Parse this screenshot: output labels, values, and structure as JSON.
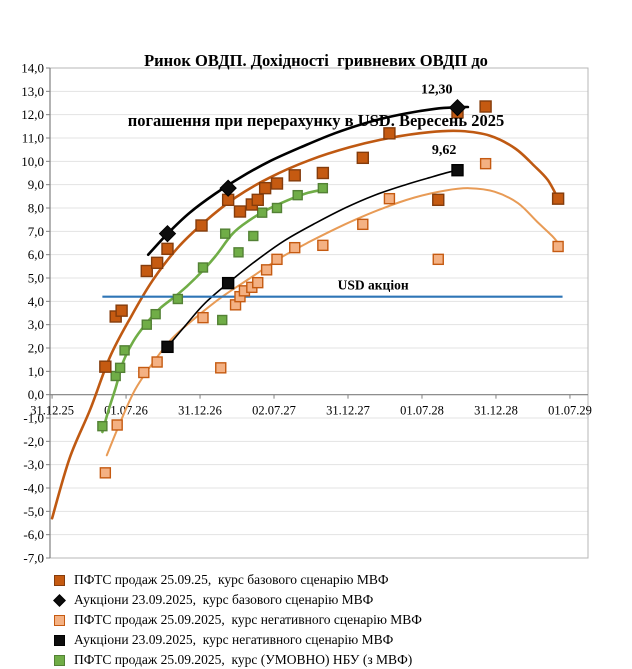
{
  "title": {
    "line1": "Ринок ОВДП. Дохідності  гривневих ОВДП до",
    "line2": "погашення при перерахунку в USD. Вересень 2025"
  },
  "chart_data": {
    "type": "scatter",
    "title": "Ринок ОВДП. Дохідності гривневих ОВДП до погашення при перерахунку в USD. Вересень 2025",
    "x_axis": {
      "range": [
        2025.986,
        2029.622
      ],
      "ticks": [
        {
          "label": "31.12.25",
          "x": 2026.0
        },
        {
          "label": "01.07.26",
          "x": 2026.5
        },
        {
          "label": "31.12.26",
          "x": 2027.0
        },
        {
          "label": "02.07.27",
          "x": 2027.5
        },
        {
          "label": "31.12.27",
          "x": 2028.0
        },
        {
          "label": "01.07.28",
          "x": 2028.5
        },
        {
          "label": "31.12.28",
          "x": 2029.0
        },
        {
          "label": "01.07.29",
          "x": 2029.5
        }
      ]
    },
    "y_axis": {
      "range": [
        -7,
        14
      ],
      "ticks": [
        {
          "label": "14,0",
          "v": 14
        },
        {
          "label": "13,0",
          "v": 13
        },
        {
          "label": "12,0",
          "v": 12
        },
        {
          "label": "11,0",
          "v": 11
        },
        {
          "label": "10,0",
          "v": 10
        },
        {
          "label": "9,0",
          "v": 9
        },
        {
          "label": "8,0",
          "v": 8
        },
        {
          "label": "7,0",
          "v": 7
        },
        {
          "label": "6,0",
          "v": 6
        },
        {
          "label": "5,0",
          "v": 5
        },
        {
          "label": "4,0",
          "v": 4
        },
        {
          "label": "3,0",
          "v": 3
        },
        {
          "label": "2,0",
          "v": 2
        },
        {
          "label": "1,0",
          "v": 1
        },
        {
          "label": "0,0",
          "v": 0
        },
        {
          "label": "-1,0",
          "v": -1
        },
        {
          "label": "-2,0",
          "v": -2
        },
        {
          "label": "-3,0",
          "v": -3
        },
        {
          "label": "-4,0",
          "v": -4
        },
        {
          "label": "-5,0",
          "v": -5
        },
        {
          "label": "-6,0",
          "v": -6
        },
        {
          "label": "-7,0",
          "v": -7
        }
      ]
    },
    "reference_line": {
      "label": "USD акціон",
      "value": 4.2,
      "x_from": 2026.34,
      "x_to": 2029.45,
      "color": "#2E75B6"
    },
    "annotations": [
      {
        "text": "12,30",
        "x": 2028.6,
        "y": 13.05,
        "anchor": "middle",
        "size": 14
      },
      {
        "text": "9,62",
        "x": 2028.65,
        "y": 10.45,
        "anchor": "middle",
        "size": 14
      },
      {
        "text": "USD акціон",
        "x": 2027.93,
        "y": 4.65,
        "anchor": "start",
        "size": 13.5
      }
    ],
    "series": [
      {
        "id": "pfts-negative-scenario",
        "marker": "square",
        "size": 10,
        "fill": "#F4B183",
        "stroke": "#C55A11",
        "trend_color": "#E89B56",
        "trend_width": 2,
        "points": [
          [
            2026.36,
            -3.35
          ],
          [
            2026.44,
            -1.3
          ],
          [
            2026.62,
            0.95
          ],
          [
            2026.71,
            1.4
          ],
          [
            2027.02,
            3.3
          ],
          [
            2027.14,
            1.15
          ],
          [
            2027.24,
            3.85
          ],
          [
            2027.27,
            4.2
          ],
          [
            2027.3,
            4.45
          ],
          [
            2027.35,
            4.6
          ],
          [
            2027.39,
            4.8
          ],
          [
            2027.45,
            5.35
          ],
          [
            2027.52,
            5.8
          ],
          [
            2027.64,
            6.3
          ],
          [
            2027.83,
            6.4
          ],
          [
            2028.1,
            7.3
          ],
          [
            2028.28,
            8.4
          ],
          [
            2028.61,
            5.8
          ],
          [
            2028.93,
            9.9
          ],
          [
            2029.42,
            6.35
          ]
        ],
        "trend": [
          [
            2026.37,
            -2.6
          ],
          [
            2026.46,
            -1.2
          ],
          [
            2026.56,
            0.2
          ],
          [
            2026.68,
            1.35
          ],
          [
            2026.81,
            2.4
          ],
          [
            2026.97,
            3.3
          ],
          [
            2027.15,
            4.2
          ],
          [
            2027.34,
            5.0
          ],
          [
            2027.54,
            5.85
          ],
          [
            2027.74,
            6.55
          ],
          [
            2027.98,
            7.3
          ],
          [
            2028.22,
            7.95
          ],
          [
            2028.45,
            8.45
          ],
          [
            2028.66,
            8.75
          ],
          [
            2028.82,
            8.85
          ],
          [
            2028.99,
            8.7
          ],
          [
            2029.15,
            8.2
          ],
          [
            2029.28,
            7.4
          ],
          [
            2029.38,
            6.8
          ],
          [
            2029.42,
            6.5
          ]
        ]
      },
      {
        "id": "pfts-nbu-conditional",
        "marker": "square",
        "size": 9,
        "fill": "#70AD47",
        "stroke": "#538135",
        "trend_color": "#70AD47",
        "trend_width": 2.6,
        "points": [
          [
            2026.34,
            -1.35
          ],
          [
            2026.43,
            0.8
          ],
          [
            2026.46,
            1.15
          ],
          [
            2026.49,
            1.9
          ],
          [
            2026.64,
            3.0
          ],
          [
            2026.7,
            3.45
          ],
          [
            2026.85,
            4.1
          ],
          [
            2027.02,
            5.45
          ],
          [
            2027.15,
            3.2
          ],
          [
            2027.17,
            6.9
          ],
          [
            2027.26,
            6.1
          ],
          [
            2027.36,
            6.8
          ],
          [
            2027.42,
            7.8
          ],
          [
            2027.52,
            8.0
          ],
          [
            2027.66,
            8.55
          ],
          [
            2027.83,
            8.85
          ]
        ],
        "trend": [
          [
            2026.34,
            -1.6
          ],
          [
            2026.38,
            -0.7
          ],
          [
            2026.43,
            0.3
          ],
          [
            2026.48,
            1.4
          ],
          [
            2026.55,
            2.3
          ],
          [
            2026.63,
            3.0
          ],
          [
            2026.73,
            3.7
          ],
          [
            2026.85,
            4.3
          ],
          [
            2026.97,
            5.0
          ],
          [
            2027.1,
            5.9
          ],
          [
            2027.22,
            6.9
          ],
          [
            2027.34,
            7.5
          ],
          [
            2027.46,
            7.95
          ],
          [
            2027.6,
            8.35
          ],
          [
            2027.73,
            8.65
          ],
          [
            2027.85,
            8.8
          ]
        ]
      },
      {
        "id": "pfts-base-scenario",
        "marker": "square",
        "size": 11,
        "fill": "#C55A11",
        "stroke": "#843C0C",
        "trend_color": "#BF5912",
        "trend_width": 2.6,
        "points": [
          [
            2026.36,
            1.2
          ],
          [
            2026.43,
            3.35
          ],
          [
            2026.47,
            3.6
          ],
          [
            2026.64,
            5.3
          ],
          [
            2026.71,
            5.65
          ],
          [
            2026.78,
            6.25
          ],
          [
            2027.01,
            7.25
          ],
          [
            2027.19,
            8.35
          ],
          [
            2027.27,
            7.85
          ],
          [
            2027.35,
            8.15
          ],
          [
            2027.39,
            8.35
          ],
          [
            2027.44,
            8.85
          ],
          [
            2027.52,
            9.05
          ],
          [
            2027.64,
            9.4
          ],
          [
            2027.83,
            9.5
          ],
          [
            2028.1,
            10.15
          ],
          [
            2028.28,
            11.2
          ],
          [
            2028.61,
            8.35
          ],
          [
            2028.74,
            12.1
          ],
          [
            2028.93,
            12.35
          ],
          [
            2029.42,
            8.4
          ]
        ],
        "trend": [
          [
            2026.0,
            -5.3
          ],
          [
            2026.12,
            -2.7
          ],
          [
            2026.26,
            -0.6
          ],
          [
            2026.39,
            1.6
          ],
          [
            2026.53,
            3.3
          ],
          [
            2026.68,
            4.9
          ],
          [
            2026.85,
            6.3
          ],
          [
            2027.03,
            7.4
          ],
          [
            2027.24,
            8.45
          ],
          [
            2027.47,
            9.3
          ],
          [
            2027.74,
            10.05
          ],
          [
            2028.01,
            10.6
          ],
          [
            2028.28,
            11.0
          ],
          [
            2028.55,
            11.25
          ],
          [
            2028.76,
            11.3
          ],
          [
            2028.96,
            11.1
          ],
          [
            2029.13,
            10.55
          ],
          [
            2029.26,
            9.8
          ],
          [
            2029.35,
            9.2
          ],
          [
            2029.42,
            8.4
          ]
        ]
      },
      {
        "id": "auction-negative-scenario",
        "marker": "square",
        "size": 11,
        "fill": "#0D0D0D",
        "stroke": "#000000",
        "trend_color": "#000000",
        "trend_width": 1.6,
        "points": [
          [
            2026.78,
            2.05
          ],
          [
            2027.19,
            4.78
          ],
          [
            2028.74,
            9.62
          ]
        ],
        "trend": [
          [
            2026.78,
            2.05
          ],
          [
            2026.9,
            2.95
          ],
          [
            2027.03,
            3.9
          ],
          [
            2027.19,
            4.78
          ],
          [
            2027.37,
            5.7
          ],
          [
            2027.57,
            6.6
          ],
          [
            2027.78,
            7.35
          ],
          [
            2027.98,
            8.0
          ],
          [
            2028.18,
            8.55
          ],
          [
            2028.39,
            9.0
          ],
          [
            2028.55,
            9.3
          ],
          [
            2028.69,
            9.55
          ],
          [
            2028.77,
            9.63
          ]
        ]
      },
      {
        "id": "auction-base-scenario",
        "marker": "diamond",
        "size": 16,
        "fill": "#0D0D0D",
        "stroke": "#000000",
        "trend_color": "#000000",
        "trend_width": 2.6,
        "points": [
          [
            2026.78,
            6.9
          ],
          [
            2027.19,
            8.85
          ],
          [
            2028.74,
            12.3
          ]
        ],
        "trend": [
          [
            2026.65,
            6.0
          ],
          [
            2026.78,
            6.9
          ],
          [
            2026.93,
            7.8
          ],
          [
            2027.1,
            8.6
          ],
          [
            2027.27,
            9.3
          ],
          [
            2027.47,
            10.0
          ],
          [
            2027.68,
            10.6
          ],
          [
            2027.91,
            11.2
          ],
          [
            2028.15,
            11.7
          ],
          [
            2028.39,
            12.05
          ],
          [
            2028.59,
            12.25
          ],
          [
            2028.74,
            12.32
          ],
          [
            2028.81,
            12.33
          ]
        ]
      }
    ],
    "grid": {
      "horizontal": true,
      "color": "#E3E3E3"
    },
    "legend_position": "bottom"
  },
  "legend": {
    "items": [
      {
        "label": "ПФТС продаж 25.09.25,  курс базового сценарію МВФ",
        "shape": "square",
        "fill": "#C55A11",
        "stroke": "#843C0C"
      },
      {
        "label": "Аукціони 23.09.2025,  курс базового сценарію МВФ",
        "shape": "diamond",
        "fill": "#0D0D0D",
        "stroke": "#000000"
      },
      {
        "label": "ПФТС продаж 25.09.2025,  курс негативного сценарію МВФ",
        "shape": "square",
        "fill": "#F4B183",
        "stroke": "#C55A11"
      },
      {
        "label": "Аукціони 23.09.2025,  курс негативного сценарію МВФ",
        "shape": "square",
        "fill": "#0D0D0D",
        "stroke": "#000000"
      },
      {
        "label": "ПФТС продаж 25.09.2025,  курс (УМОВНО) НБУ (з МВФ)",
        "shape": "square",
        "fill": "#70AD47",
        "stroke": "#538135"
      }
    ]
  }
}
